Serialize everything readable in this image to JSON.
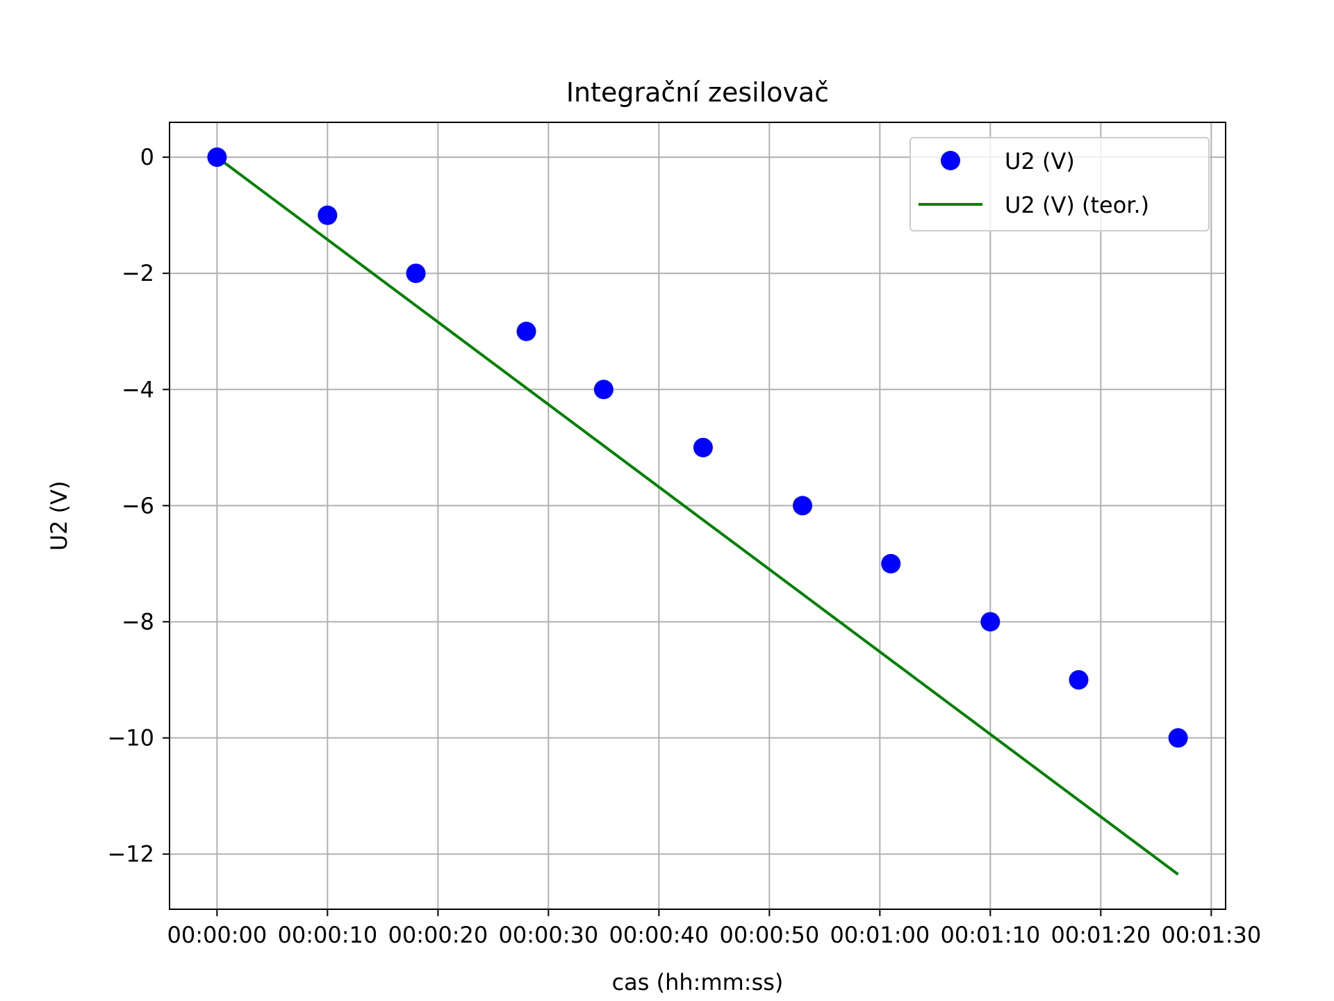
{
  "chart_data": {
    "type": "line",
    "title": "Integrační zesilovač",
    "xlabel": "cas (hh:mm:ss)",
    "ylabel": "U2 (V)",
    "x_tick_labels": [
      "00:00:00",
      "00:00:10",
      "00:00:20",
      "00:00:30",
      "00:00:40",
      "00:00:50",
      "00:01:00",
      "00:01:10",
      "00:01:20",
      "00:01:30"
    ],
    "y_tick_values": [
      0,
      -2,
      -4,
      -6,
      -8,
      -10,
      -12
    ],
    "y_tick_labels": [
      "0",
      "−2",
      "−4",
      "−6",
      "−8",
      "−10",
      "−12"
    ],
    "xlim": [
      "-00:00:04.3",
      "00:01:31.3"
    ],
    "ylim": [
      -12.95,
      0.6
    ],
    "grid": true,
    "legend_position": "top-right",
    "series": [
      {
        "name": "U2 (V)",
        "kind": "markers",
        "color": "#0000ff",
        "x": [
          "00:00:00",
          "00:00:10",
          "00:00:18",
          "00:00:28",
          "00:00:35",
          "00:00:44",
          "00:00:53",
          "00:01:01",
          "00:01:10",
          "00:01:18",
          "00:01:27"
        ],
        "y": [
          0,
          -1,
          -2,
          -3,
          -4,
          -5,
          -6,
          -7,
          -8,
          -9,
          -10
        ]
      },
      {
        "name": "U2 (V) (teor.)",
        "kind": "line",
        "color": "#008000",
        "x": [
          "00:00:00",
          "00:01:27"
        ],
        "y": [
          0,
          -12.35
        ]
      }
    ]
  }
}
